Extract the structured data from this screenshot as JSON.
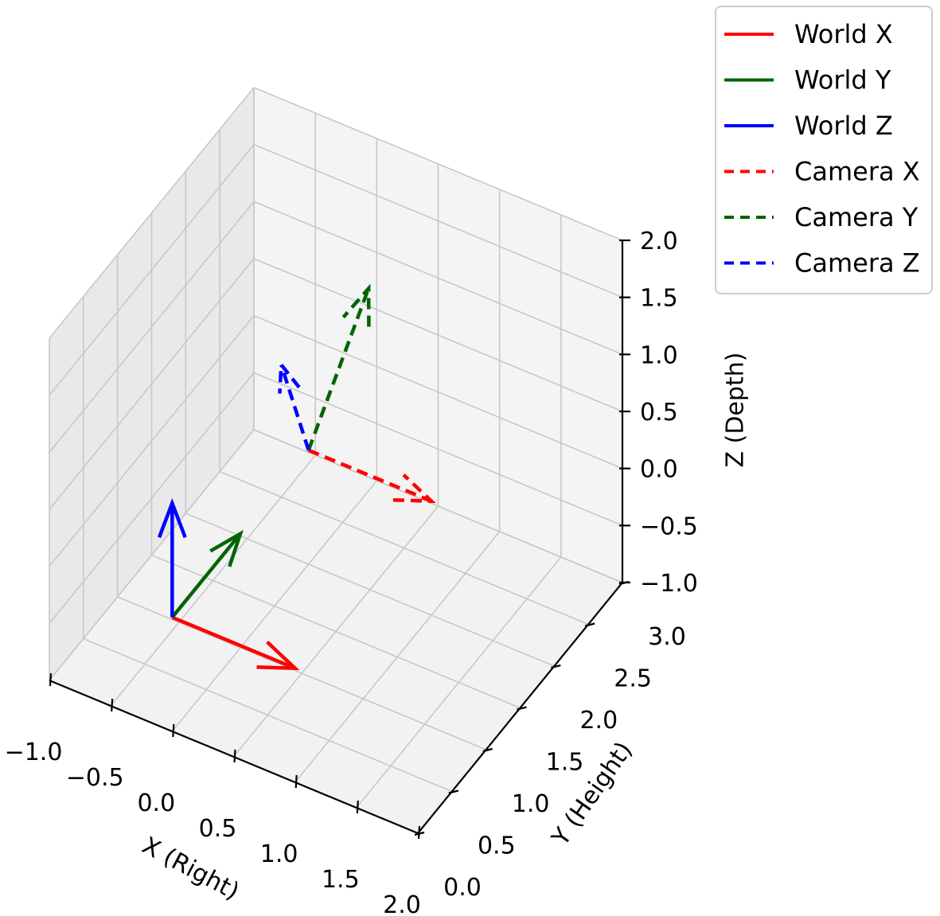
{
  "chart_data": {
    "type": "line",
    "projection": "3d",
    "xlabel": "X (Right)",
    "ylabel": "Y (Height)",
    "zlabel": "Z (Depth)",
    "xlim": [
      -1.0,
      2.0
    ],
    "ylim": [
      0.0,
      3.0
    ],
    "zlim": [
      -1.0,
      2.0
    ],
    "x_ticks": [
      "−1.0",
      "−0.5",
      "0.0",
      "0.5",
      "1.0",
      "1.5",
      "2.0"
    ],
    "y_ticks": [
      "0.0",
      "0.5",
      "1.0",
      "1.5",
      "2.0",
      "2.5",
      "3.0"
    ],
    "z_ticks": [
      "−1.0",
      "−0.5",
      "0.0",
      "0.5",
      "1.0",
      "1.5",
      "2.0"
    ],
    "grid": true,
    "legend_position": "top-right",
    "series": [
      {
        "name": "World X",
        "color": "#ff0000",
        "dash": "solid",
        "start": [
          0,
          0,
          0
        ],
        "end": [
          1,
          0,
          0
        ]
      },
      {
        "name": "World Y",
        "color": "#006400",
        "dash": "solid",
        "start": [
          0,
          0,
          0
        ],
        "end": [
          0,
          1,
          0
        ]
      },
      {
        "name": "World Z",
        "color": "#0000ff",
        "dash": "solid",
        "start": [
          0,
          0,
          0
        ],
        "end": [
          0,
          0,
          1
        ]
      },
      {
        "name": "Camera X",
        "color": "#ff0000",
        "dash": "dashed",
        "start": [
          0,
          2,
          0
        ],
        "end": [
          1,
          2,
          0
        ]
      },
      {
        "name": "Camera Y",
        "color": "#006400",
        "dash": "dashed",
        "start": [
          0,
          2,
          0
        ],
        "end": [
          0.1,
          2.7,
          0.95
        ]
      },
      {
        "name": "Camera Z",
        "color": "#0000ff",
        "dash": "dashed",
        "start": [
          0,
          2,
          0
        ],
        "end": [
          -0.25,
          2.05,
          0.6
        ]
      }
    ]
  }
}
